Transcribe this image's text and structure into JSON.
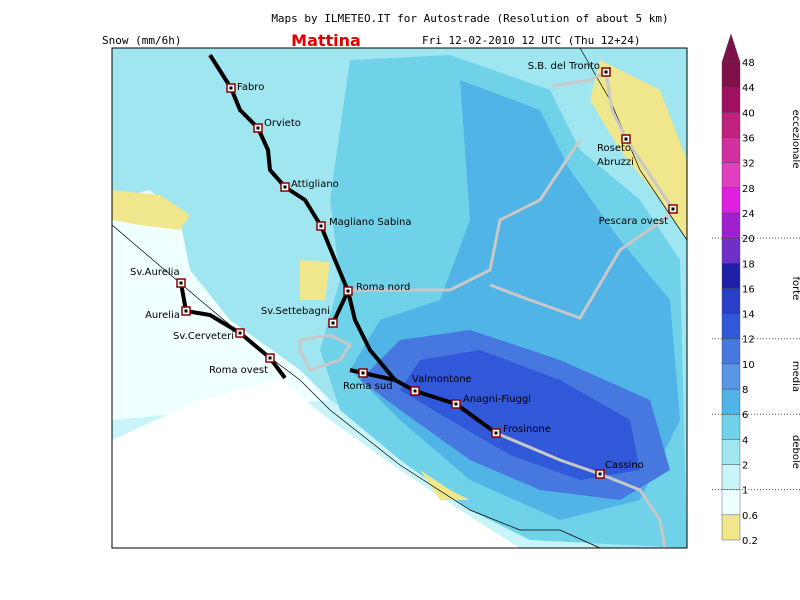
{
  "header": {
    "title": "Maps by ILMETEO.IT for Autostrade (Resolution of about 5 km)",
    "variable": "Snow (mm/6h)",
    "period": "Mattina",
    "date": "Fri 12-02-2010 12 UTC (Thu 12+24)"
  },
  "places": [
    "Fabro",
    "Orvieto",
    "Attigliano",
    "Magliano Sabina",
    "Roma nord",
    "Sv.Settebagni",
    "Sv.Aurelia",
    "Aurelia",
    "Sv.Cerveteri",
    "Roma ovest",
    "Roma sud",
    "Valmontone",
    "Anagni-Fiuggi",
    "Frosinone",
    "Cassino",
    "Pescara ovest",
    "Roseto",
    "Abruzzi",
    "S.B. del Tronto"
  ],
  "legend": {
    "levels": [
      0.2,
      0.6,
      1,
      2,
      4,
      6,
      8,
      10,
      12,
      14,
      16,
      18,
      20,
      24,
      28,
      32,
      36,
      40,
      44,
      48
    ],
    "colors": [
      "#f0e68c",
      "#f0ffff",
      "#c8f4fa",
      "#a0e6f0",
      "#70d2e8",
      "#50b4e6",
      "#5a96e6",
      "#4678e0",
      "#3058d8",
      "#2840c8",
      "#2020a8",
      "#7030c8",
      "#a020d0",
      "#e020e0",
      "#e040c0",
      "#d030a0",
      "#c02080",
      "#a01060",
      "#801048"
    ],
    "classes": [
      "debole",
      "media",
      "forte",
      "eccezionale"
    ]
  }
}
